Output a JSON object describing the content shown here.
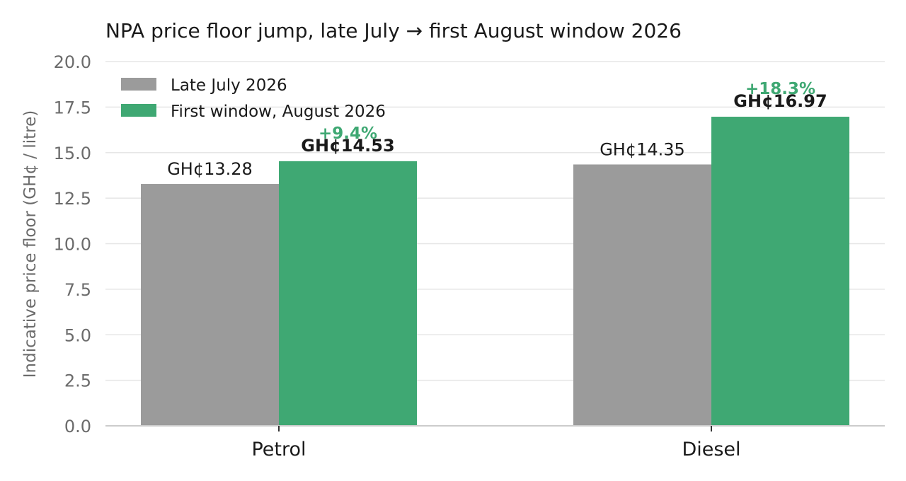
{
  "chart_data": {
    "type": "bar",
    "title": "NPA price floor jump, late July → first August window 2026",
    "xlabel": "",
    "ylabel": "Indicative price floor (GH¢ / litre)",
    "ylim": [
      0,
      20
    ],
    "yticks": [
      "0.0",
      "2.5",
      "5.0",
      "7.5",
      "10.0",
      "12.5",
      "15.0",
      "17.5",
      "20.0"
    ],
    "categories": [
      "Petrol",
      "Diesel"
    ],
    "series": [
      {
        "name": "Late July 2026",
        "color": "#9b9b9b",
        "values": [
          13.28,
          14.35
        ],
        "labels": [
          "GH¢13.28",
          "GH¢14.35"
        ]
      },
      {
        "name": "First window, August 2026",
        "color": "#3fa873",
        "values": [
          14.53,
          16.97
        ],
        "labels": [
          "GH¢14.53",
          "GH¢16.97"
        ]
      }
    ],
    "change_labels": [
      "+9.4%",
      "+18.3%"
    ],
    "change_color": "#3fa873",
    "grid": true,
    "legend_position": "top-left"
  }
}
